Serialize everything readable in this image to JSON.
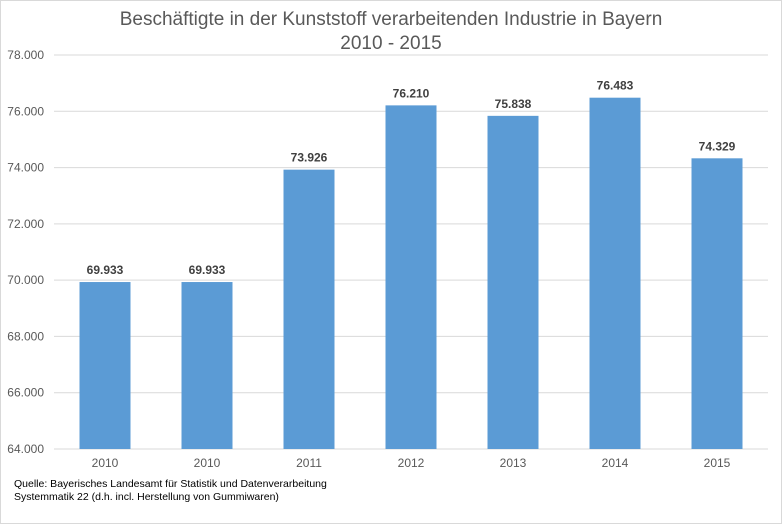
{
  "chart_data": {
    "type": "bar",
    "title_line1": "Beschäftigte in der Kunststoff verarbeitenden Industrie in  Bayern",
    "title_line2": "2010 - 2015",
    "categories": [
      "2010",
      "2010",
      "2011",
      "2012",
      "2013",
      "2014",
      "2015"
    ],
    "values": [
      69933,
      69933,
      73926,
      76210,
      75838,
      76483,
      74329
    ],
    "data_labels": [
      "69.933",
      "69.933",
      "73.926",
      "76.210",
      "75.838",
      "76.483",
      "74.329"
    ],
    "y_ticks": [
      64000,
      66000,
      68000,
      70000,
      72000,
      74000,
      76000,
      78000
    ],
    "y_tick_labels": [
      "64.000",
      "66.000",
      "68.000",
      "70.000",
      "72.000",
      "74.000",
      "76.000",
      "78.000"
    ],
    "ylim": [
      64000,
      78000
    ],
    "grid": true,
    "legend": "none",
    "bar_color": "#5b9bd5"
  },
  "source": {
    "line1": "Quelle:   Bayerisches Landesamt für Statistik und Datenverarbeitung",
    "line2": "Systemmatik 22 (d.h. incl. Herstellung von Gummiwaren)"
  }
}
